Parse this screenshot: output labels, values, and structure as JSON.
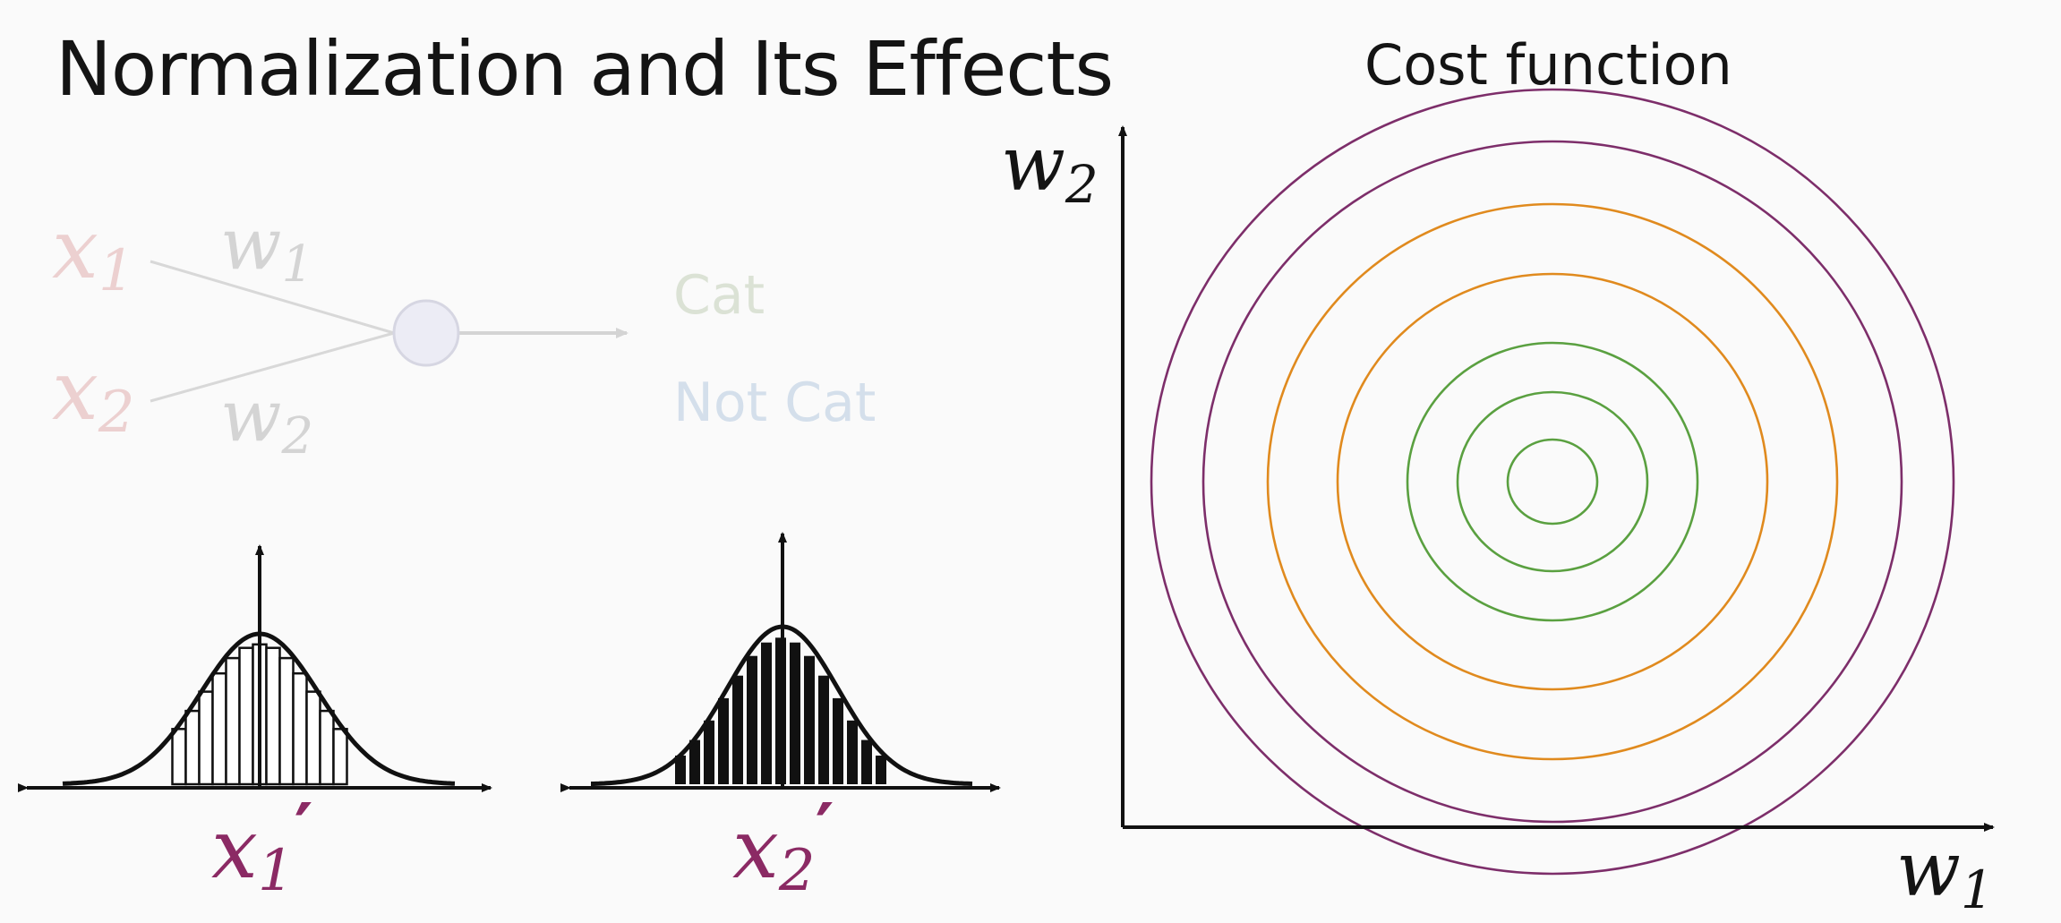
{
  "title": "Normalization and Its Effects",
  "network": {
    "input1_label": "x",
    "input1_sub": "1",
    "input2_label": "x",
    "input2_sub": "2",
    "weight1_label": "w",
    "weight1_sub": "1",
    "weight2_label": "w",
    "weight2_sub": "2",
    "output_cat": "Cat",
    "output_not_cat": "Not Cat"
  },
  "distributions": [
    {
      "label": "x",
      "sub": "1",
      "prime": "′",
      "style": "hollow"
    },
    {
      "label": "x",
      "sub": "2",
      "prime": "′",
      "style": "filled"
    }
  ],
  "cost_plot": {
    "title": "Cost function",
    "x_axis_label": "w",
    "x_axis_sub": "1",
    "y_axis_label": "w",
    "y_axis_sub": "2",
    "contour_colors": [
      "#7d2e6a",
      "#7d2e6a",
      "#e08a1e",
      "#e08a1e",
      "#5aa040",
      "#5aa040",
      "#5aa040"
    ]
  },
  "colors": {
    "label_purple": "#8b2a64",
    "faded_red": "#e6c7c7",
    "faded_gray": "#cfcfcf",
    "faded_green": "#d7ded0",
    "faded_blue": "#cfdbe8",
    "node_fill": "#e9e9f4"
  }
}
